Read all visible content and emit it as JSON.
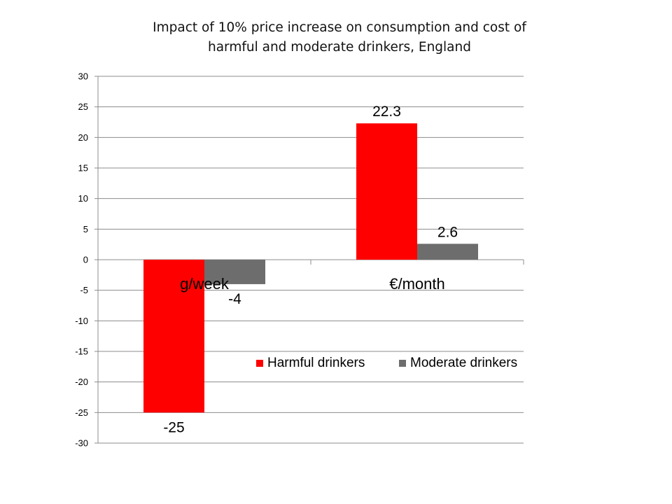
{
  "chart_data": {
    "type": "bar",
    "title_lines": [
      "Impact of 10% price increase on consumption and cost of",
      "harmful and moderate drinkers, England"
    ],
    "categories": [
      "g/week",
      "€/month"
    ],
    "series": [
      {
        "name": "Harmful drinkers",
        "values": [
          -25,
          22.3
        ],
        "labels": [
          "-25",
          "22.3"
        ]
      },
      {
        "name": "Moderate drinkers",
        "values": [
          -4,
          2.6
        ],
        "labels": [
          "-4",
          "2.6"
        ]
      }
    ],
    "ylim": [
      -30,
      30
    ],
    "y_ticks": [
      30,
      25,
      20,
      15,
      10,
      5,
      0,
      -5,
      -10,
      -15,
      -20,
      -25,
      -30
    ],
    "grid": true,
    "legend_position": "lower-right",
    "colors": [
      "#ff0000",
      "#6d6d6d"
    ]
  }
}
